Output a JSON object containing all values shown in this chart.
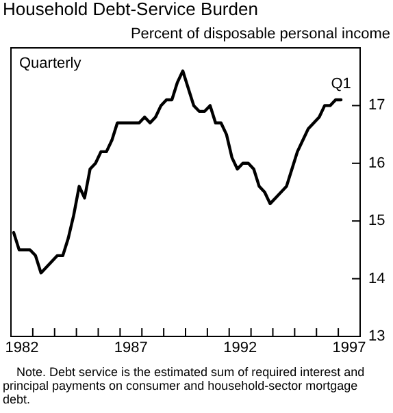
{
  "chart_data": {
    "type": "line",
    "title": "Household Debt-Service Burden",
    "ylabel": "Percent of disposable personal income",
    "x": [
      1982.125,
      1982.375,
      1982.625,
      1982.875,
      1983.125,
      1983.375,
      1983.625,
      1983.875,
      1984.125,
      1984.375,
      1984.625,
      1984.875,
      1985.125,
      1985.375,
      1985.625,
      1985.875,
      1986.125,
      1986.375,
      1986.625,
      1986.875,
      1987.125,
      1987.375,
      1987.625,
      1987.875,
      1988.125,
      1988.375,
      1988.625,
      1988.875,
      1989.125,
      1989.375,
      1989.625,
      1989.875,
      1990.125,
      1990.375,
      1990.625,
      1990.875,
      1991.125,
      1991.375,
      1991.625,
      1991.875,
      1992.125,
      1992.375,
      1992.625,
      1992.875,
      1993.125,
      1993.375,
      1993.625,
      1993.875,
      1994.125,
      1994.375,
      1994.625,
      1994.875,
      1995.125,
      1995.375,
      1995.625,
      1995.875,
      1996.125,
      1996.375,
      1996.625,
      1996.875,
      1997.125
    ],
    "series": [
      {
        "color": "#000000",
        "values": [
          14.8,
          14.5,
          14.5,
          14.5,
          14.4,
          14.1,
          14.2,
          14.3,
          14.4,
          14.4,
          14.7,
          15.1,
          15.6,
          15.4,
          15.9,
          16.0,
          16.2,
          16.2,
          16.4,
          16.7,
          16.7,
          16.7,
          16.7,
          16.7,
          16.8,
          16.7,
          16.8,
          17.0,
          17.1,
          17.1,
          17.4,
          17.6,
          17.3,
          17.0,
          16.9,
          16.9,
          17.0,
          16.7,
          16.7,
          16.5,
          16.1,
          15.9,
          16.0,
          16.0,
          15.9,
          15.6,
          15.5,
          15.3,
          15.4,
          15.5,
          15.6,
          15.9,
          16.2,
          16.4,
          16.6,
          16.7,
          16.8,
          17.0,
          17.0,
          17.1,
          17.1
        ]
      }
    ],
    "xlim": [
      1982,
      1998
    ],
    "xticks": [
      {
        "value": 1982,
        "label": null
      },
      {
        "value": 1982.5,
        "label": "1982"
      },
      {
        "value": 1983,
        "label": null
      },
      {
        "value": 1984,
        "label": null
      },
      {
        "value": 1985,
        "label": null
      },
      {
        "value": 1986,
        "label": null
      },
      {
        "value": 1987,
        "label": null
      },
      {
        "value": 1987.5,
        "label": "1987"
      },
      {
        "value": 1988,
        "label": null
      },
      {
        "value": 1989,
        "label": null
      },
      {
        "value": 1990,
        "label": null
      },
      {
        "value": 1991,
        "label": null
      },
      {
        "value": 1992,
        "label": null
      },
      {
        "value": 1992.5,
        "label": "1992"
      },
      {
        "value": 1993,
        "label": null
      },
      {
        "value": 1994,
        "label": null
      },
      {
        "value": 1995,
        "label": null
      },
      {
        "value": 1996,
        "label": null
      },
      {
        "value": 1997,
        "label": null
      },
      {
        "value": 1997.5,
        "label": "1997"
      },
      {
        "value": 1998,
        "label": null
      }
    ],
    "ylim": [
      13,
      18
    ],
    "yticks": [
      13,
      14,
      15,
      16,
      17
    ],
    "grid": false,
    "legend": false,
    "marker": "none",
    "line_style": "solid",
    "annotations": [
      "Quarterly",
      {
        "text": "Q1",
        "x": 1997.125,
        "y": 17.1
      },
      "Note. Debt service is the estimated sum of required interest and principal payments on consumer and household-sector mortgage debt."
    ]
  }
}
